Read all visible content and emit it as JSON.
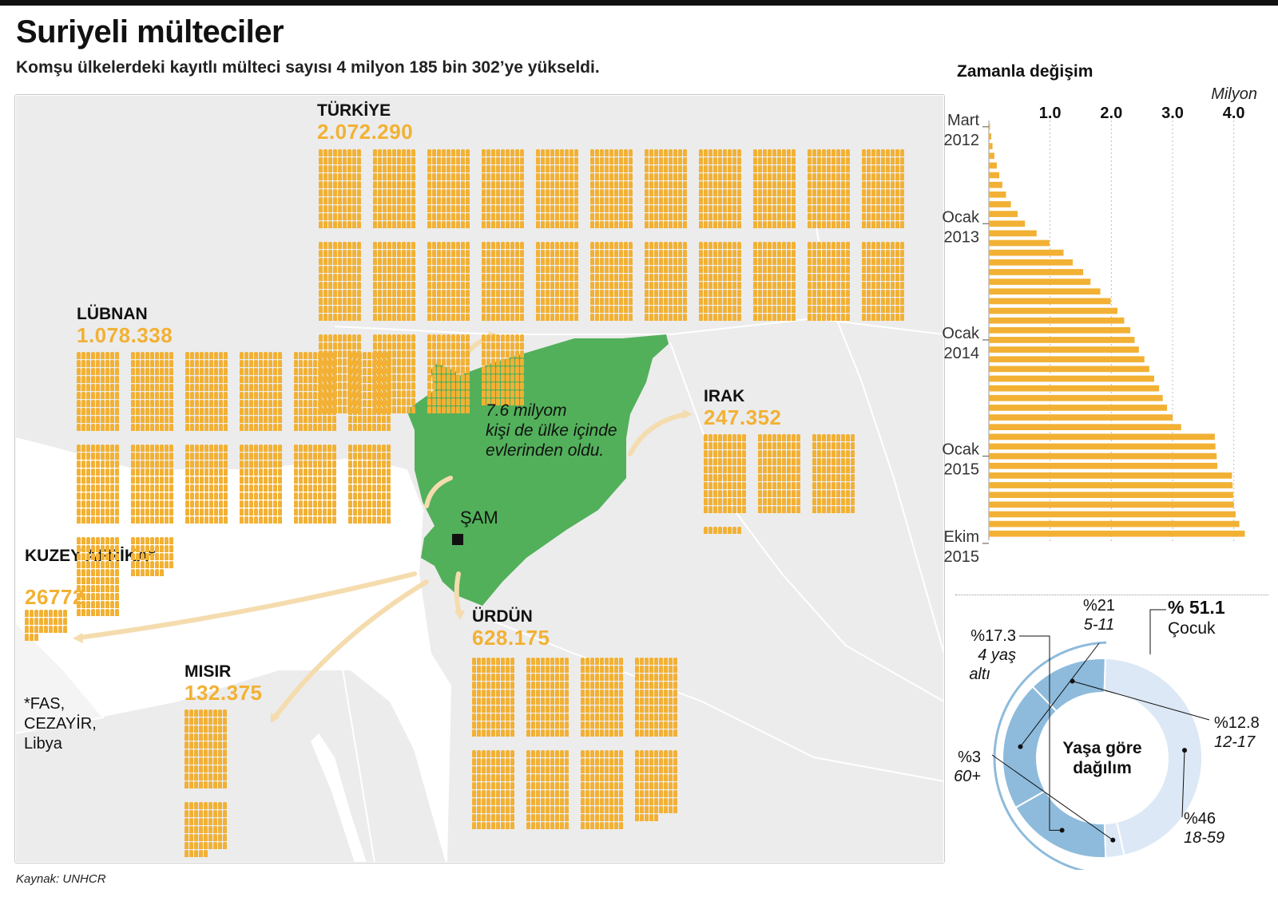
{
  "header": {
    "title": "Suriyeli mülteciler",
    "subtitle": "Komşu ülkelerdeki kayıtlı mülteci sayısı 4 milyon 185 bin 302’ye yükseldi.",
    "source": "Kaynak: UNHCR"
  },
  "colors": {
    "refugee": "#f2b134",
    "syria": "#52b05a",
    "donut_children": "#8ebbdc",
    "donut_adults": "#dce8f5",
    "arrow": "#f5dcae",
    "land": "#ececec"
  },
  "map": {
    "internal_note": [
      "7.6 milyom",
      "kişi de ülke içinde",
      "evlerinden oldu."
    ],
    "capital": "ŞAM",
    "footnote": "*FAS,\nCEZAYİR,\nLibya",
    "countries": [
      {
        "id": "turkiye",
        "name": "TÜRKİYE",
        "value": "2.072.290",
        "count": 2072290
      },
      {
        "id": "lubnan",
        "name": "LÜBNAN",
        "value": "1.078.338",
        "count": 1078338
      },
      {
        "id": "irak",
        "name": "IRAK",
        "value": "247.352",
        "count": 247352
      },
      {
        "id": "kuzey-afrika",
        "name": "KUZEY AFRİKA*",
        "value": "26772",
        "count": 26772
      },
      {
        "id": "misir",
        "name": "MISIR",
        "value": "132.375",
        "count": 132375
      },
      {
        "id": "urdun",
        "name": "ÜRDÜN",
        "value": "628.175",
        "count": 628175
      }
    ]
  },
  "chart_data": [
    {
      "type": "bar",
      "orientation": "horizontal",
      "title": "Zamanla değişim",
      "unit_label": "Milyon",
      "xlim": [
        0,
        4.2
      ],
      "xticks": [
        "1.0",
        "2.0",
        "3.0",
        "4.0"
      ],
      "y_ticks": [
        {
          "index": 0,
          "line1": "Mart",
          "line2": "2012"
        },
        {
          "index": 10,
          "line1": "Ocak",
          "line2": "2013"
        },
        {
          "index": 22,
          "line1": "Ocak",
          "line2": "2014"
        },
        {
          "index": 34,
          "line1": "Ocak",
          "line2": "2015"
        },
        {
          "index": 43,
          "line1": "Ekim",
          "line2": "2015"
        }
      ],
      "values": [
        0.02,
        0.04,
        0.06,
        0.09,
        0.13,
        0.17,
        0.22,
        0.28,
        0.36,
        0.47,
        0.59,
        0.78,
        0.99,
        1.22,
        1.37,
        1.54,
        1.66,
        1.82,
        1.99,
        2.1,
        2.21,
        2.31,
        2.38,
        2.45,
        2.54,
        2.62,
        2.7,
        2.78,
        2.84,
        2.91,
        3.0,
        3.14,
        3.69,
        3.7,
        3.72,
        3.73,
        3.97,
        3.98,
        3.99,
        4.0,
        4.03,
        4.09,
        4.18
      ]
    },
    {
      "type": "pie",
      "title": "Yaşa göre dağılım",
      "group_label": {
        "value": "% 51.1",
        "name": "Çocuk"
      },
      "slices": [
        {
          "label": "%17.3",
          "sub": [
            "4 yaş",
            "altı"
          ],
          "value": 17.3,
          "group": "children"
        },
        {
          "label": "%21",
          "sub": [
            "5-11"
          ],
          "value": 21,
          "group": "children"
        },
        {
          "label": "%12.8",
          "sub": [
            "12-17"
          ],
          "value": 12.8,
          "group": "children"
        },
        {
          "label": "%46",
          "sub": [
            "18-59"
          ],
          "value": 46,
          "group": "adults"
        },
        {
          "label": "%3",
          "sub": [
            "60+"
          ],
          "value": 3,
          "group": "adults"
        }
      ]
    }
  ]
}
